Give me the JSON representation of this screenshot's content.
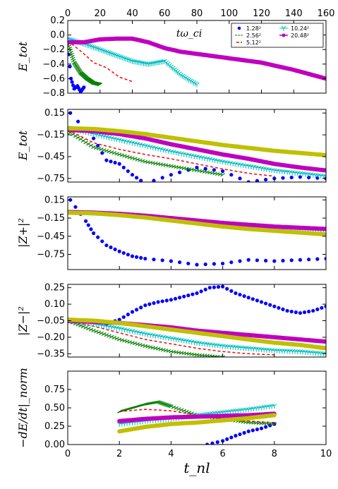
{
  "chart_data": [
    {
      "type": "line",
      "ylabel": "E_tot",
      "xlim": [
        0,
        160
      ],
      "ylim": [
        -0.8,
        0.2
      ],
      "yticks": [
        0.2,
        0.0,
        -0.2,
        -0.4,
        -0.6,
        -0.8
      ],
      "ytick_labels": [
        "0.2",
        "0.0",
        "−0.2",
        "−0.4",
        "−0.6",
        "−0.8"
      ],
      "xticks": [
        0,
        20,
        40,
        60,
        80,
        100,
        120,
        140,
        160
      ],
      "xtick_labels": [
        "0",
        "20",
        "40",
        "60",
        "80",
        "100",
        "120",
        "140",
        "160"
      ],
      "x_axis_label": "tω_ci",
      "legend": {
        "placement": "top-right",
        "entries": [
          {
            "label": "1.28²",
            "color": "#0000ff",
            "marker": "circle"
          },
          {
            "label": "2.56²",
            "color": "#008000",
            "marker": "tick"
          },
          {
            "label": "5.12²",
            "color": "#ff0000",
            "marker": "dash"
          },
          {
            "label": "10.24²",
            "color": "#00bfbf",
            "marker": "tri"
          },
          {
            "label": "20.48²",
            "color": "#bf00bf",
            "marker": "circle-line"
          }
        ]
      },
      "series": [
        {
          "color": "#0000ff",
          "style": "dots",
          "x": [
            0,
            2,
            4,
            6,
            8,
            10
          ],
          "y": [
            -0.1,
            -0.6,
            -0.74,
            -0.7,
            -0.78,
            -0.72
          ]
        },
        {
          "color": "#008000",
          "style": "ticks",
          "x": [
            0,
            4,
            8,
            12,
            16,
            20
          ],
          "y": [
            -0.1,
            -0.38,
            -0.52,
            -0.6,
            -0.66,
            -0.68
          ]
        },
        {
          "color": "#ff0000",
          "style": "dashes",
          "x": [
            0,
            8,
            16,
            24,
            32,
            40
          ],
          "y": [
            -0.08,
            -0.22,
            -0.38,
            -0.45,
            -0.58,
            -0.64
          ]
        },
        {
          "color": "#00bfbf",
          "style": "tris",
          "x": [
            0,
            10,
            20,
            30,
            40,
            50,
            60,
            70,
            80
          ],
          "y": [
            -0.05,
            -0.12,
            -0.2,
            -0.28,
            -0.36,
            -0.4,
            -0.36,
            -0.55,
            -0.68
          ]
        },
        {
          "color": "#bf00bf",
          "style": "thick",
          "x": [
            0,
            10,
            20,
            30,
            40,
            50,
            60,
            70,
            80,
            100,
            120,
            140,
            160
          ],
          "y": [
            -0.1,
            -0.1,
            -0.06,
            -0.05,
            -0.05,
            -0.1,
            -0.18,
            -0.23,
            -0.26,
            -0.32,
            -0.38,
            -0.48,
            -0.6
          ]
        }
      ]
    },
    {
      "type": "line",
      "ylabel": "E_tot",
      "xlim": [
        0,
        10
      ],
      "ylim": [
        -0.8,
        0.2
      ],
      "yticks": [
        0.15,
        -0.15,
        -0.45,
        -0.75
      ],
      "ytick_labels": [
        "0.15",
        "−0.15",
        "−0.45",
        "−0.75"
      ],
      "series": [
        {
          "color": "#0000ff",
          "style": "dots",
          "x": [
            0.1,
            1,
            1.5,
            2,
            2.5,
            3,
            4,
            5,
            6,
            7,
            8,
            9,
            10
          ],
          "y": [
            0.15,
            -0.2,
            -0.5,
            -0.55,
            -0.7,
            -0.82,
            -0.7,
            -0.6,
            -0.65,
            -0.8,
            -0.75,
            -0.73,
            -0.75
          ]
        },
        {
          "color": "#008000",
          "style": "ticks",
          "x": [
            0,
            1,
            2,
            3,
            4,
            5,
            6
          ],
          "y": [
            -0.1,
            -0.32,
            -0.42,
            -0.52,
            -0.58,
            -0.64,
            -0.7
          ]
        },
        {
          "color": "#ff0000",
          "style": "dashes",
          "x": [
            0,
            1,
            2,
            3,
            4,
            5,
            6,
            7,
            8
          ],
          "y": [
            -0.08,
            -0.26,
            -0.35,
            -0.42,
            -0.48,
            -0.55,
            -0.62,
            -0.68,
            -0.72
          ]
        },
        {
          "color": "#00bfbf",
          "style": "tris",
          "x": [
            0,
            1,
            2,
            3,
            4,
            5,
            6,
            7,
            8,
            9,
            10
          ],
          "y": [
            -0.05,
            -0.14,
            -0.22,
            -0.3,
            -0.38,
            -0.45,
            -0.52,
            -0.58,
            -0.64,
            -0.68,
            -0.72
          ]
        },
        {
          "color": "#bf00bf",
          "style": "thick",
          "x": [
            0,
            1,
            2,
            3,
            4,
            5,
            6,
            7,
            8,
            9,
            10
          ],
          "y": [
            -0.08,
            -0.1,
            -0.14,
            -0.2,
            -0.28,
            -0.35,
            -0.42,
            -0.48,
            -0.55,
            -0.6,
            -0.64
          ]
        },
        {
          "color": "#c0c000",
          "style": "thick",
          "x": [
            0,
            1,
            2,
            3,
            4,
            5,
            6,
            7,
            8,
            9,
            10
          ],
          "y": [
            -0.06,
            -0.07,
            -0.1,
            -0.14,
            -0.19,
            -0.24,
            -0.29,
            -0.33,
            -0.37,
            -0.4,
            -0.43
          ]
        }
      ]
    },
    {
      "type": "line",
      "ylabel": "|Z+|²",
      "xlim": [
        0,
        10
      ],
      "ylim": [
        -1.0,
        0.2
      ],
      "yticks": [
        0.15,
        -0.15,
        -0.45,
        -0.75
      ],
      "ytick_labels": [
        "0.15",
        "−0.15",
        "−0.45",
        "−0.75"
      ],
      "series": [
        {
          "color": "#0000ff",
          "style": "dots",
          "x": [
            0.1,
            0.7,
            1,
            1.5,
            2,
            2.5,
            3,
            4,
            5,
            6,
            7,
            8,
            9,
            10
          ],
          "y": [
            0.15,
            -0.2,
            -0.4,
            -0.6,
            -0.7,
            -0.78,
            -0.82,
            -0.86,
            -0.92,
            -0.9,
            -0.84,
            -0.86,
            -0.84,
            -0.82
          ]
        },
        {
          "color": "#008000",
          "style": "ticks",
          "x": [
            0,
            1,
            2,
            3,
            4,
            5,
            6
          ],
          "y": [
            -0.05,
            -0.08,
            -0.1,
            -0.14,
            -0.18,
            -0.22,
            -0.28
          ]
        },
        {
          "color": "#ff0000",
          "style": "dashes",
          "x": [
            0,
            1,
            2,
            3,
            4,
            5,
            6,
            7,
            8
          ],
          "y": [
            -0.05,
            -0.06,
            -0.08,
            -0.12,
            -0.17,
            -0.2,
            -0.24,
            -0.28,
            -0.32
          ]
        },
        {
          "color": "#00bfbf",
          "style": "tris",
          "x": [
            0,
            1,
            2,
            3,
            4,
            5,
            6,
            7,
            8,
            9,
            10
          ],
          "y": [
            -0.05,
            -0.06,
            -0.09,
            -0.13,
            -0.18,
            -0.22,
            -0.26,
            -0.29,
            -0.32,
            -0.34,
            -0.36
          ]
        },
        {
          "color": "#bf00bf",
          "style": "thick",
          "x": [
            0,
            1,
            2,
            3,
            4,
            5,
            6,
            7,
            8,
            9,
            10
          ],
          "y": [
            -0.05,
            -0.06,
            -0.08,
            -0.11,
            -0.15,
            -0.19,
            -0.23,
            -0.26,
            -0.29,
            -0.31,
            -0.33
          ]
        },
        {
          "color": "#c0c000",
          "style": "thick",
          "x": [
            0,
            1,
            2,
            3,
            4,
            5,
            6,
            7,
            8,
            9,
            10
          ],
          "y": [
            -0.06,
            -0.07,
            -0.1,
            -0.14,
            -0.19,
            -0.24,
            -0.29,
            -0.33,
            -0.36,
            -0.39,
            -0.42
          ]
        }
      ]
    },
    {
      "type": "line",
      "ylabel": "|Z−|²",
      "xlim": [
        0,
        10
      ],
      "ylim": [
        -0.38,
        0.28
      ],
      "yticks": [
        0.25,
        0.1,
        -0.05,
        -0.2,
        -0.35
      ],
      "ytick_labels": [
        "0.25",
        "0.10",
        "−0.05",
        "−0.20",
        "−0.35"
      ],
      "series": [
        {
          "color": "#0000ff",
          "style": "dots",
          "x": [
            0,
            1,
            1.5,
            2,
            2.5,
            3,
            3.5,
            4,
            4.5,
            5,
            5.5,
            6,
            6.5,
            7,
            7.5,
            8,
            8.5,
            9,
            9.5,
            10
          ],
          "y": [
            -0.05,
            -0.05,
            -0.08,
            -0.04,
            0.03,
            0.09,
            0.12,
            0.14,
            0.17,
            0.2,
            0.25,
            0.26,
            0.2,
            0.16,
            0.12,
            0.08,
            0.04,
            0.02,
            0.04,
            0.08
          ]
        },
        {
          "color": "#008000",
          "style": "ticks",
          "x": [
            0,
            1,
            2,
            3,
            4,
            5,
            6
          ],
          "y": [
            -0.05,
            -0.14,
            -0.22,
            -0.28,
            -0.33,
            -0.36,
            -0.38
          ]
        },
        {
          "color": "#ff0000",
          "style": "dashes",
          "x": [
            0,
            1,
            2,
            3,
            4,
            5,
            6,
            7,
            8
          ],
          "y": [
            -0.05,
            -0.1,
            -0.16,
            -0.22,
            -0.26,
            -0.3,
            -0.33,
            -0.35,
            -0.36
          ]
        },
        {
          "color": "#00bfbf",
          "style": "tris",
          "x": [
            0,
            1,
            2,
            3,
            4,
            5,
            6,
            7,
            8,
            9,
            10
          ],
          "y": [
            -0.05,
            -0.08,
            -0.12,
            -0.17,
            -0.21,
            -0.25,
            -0.28,
            -0.3,
            -0.32,
            -0.33,
            -0.35
          ]
        },
        {
          "color": "#bf00bf",
          "style": "thick",
          "x": [
            0,
            1,
            2,
            3,
            4,
            5,
            6,
            7,
            8,
            9,
            10
          ],
          "y": [
            -0.05,
            -0.06,
            -0.07,
            -0.09,
            -0.11,
            -0.14,
            -0.16,
            -0.18,
            -0.2,
            -0.22,
            -0.24
          ]
        },
        {
          "color": "#c0c000",
          "style": "thick",
          "x": [
            0,
            1,
            2,
            3,
            4,
            5,
            6,
            7,
            8,
            9,
            10
          ],
          "y": [
            -0.04,
            -0.05,
            -0.07,
            -0.1,
            -0.13,
            -0.16,
            -0.19,
            -0.22,
            -0.25,
            -0.27,
            -0.3
          ]
        }
      ]
    },
    {
      "type": "line",
      "ylabel": "−dE/dt|_norm",
      "xlim": [
        0,
        10
      ],
      "ylim": [
        0,
        1.0
      ],
      "yticks": [
        0.0,
        0.25,
        0.5,
        0.75
      ],
      "ytick_labels": [
        "0.00",
        "0.25",
        "0.50",
        "0.75"
      ],
      "xticks": [
        0,
        2,
        4,
        6,
        8,
        10
      ],
      "xtick_labels": [
        "0",
        "2",
        "4",
        "6",
        "8",
        "10"
      ],
      "xlabel": "t_nl",
      "series": [
        {
          "color": "#0000ff",
          "style": "dots",
          "x": [
            5.4,
            6,
            6.5,
            7,
            7.5,
            8
          ],
          "y": [
            0.0,
            0.05,
            0.12,
            0.18,
            0.22,
            0.28
          ]
        },
        {
          "color": "#008000",
          "style": "ticks",
          "x": [
            2,
            2.5,
            3,
            3.5,
            4,
            5,
            6,
            7,
            8
          ],
          "y": [
            0.45,
            0.5,
            0.55,
            0.58,
            0.52,
            0.4,
            0.35,
            0.3,
            0.28
          ]
        },
        {
          "color": "#ff0000",
          "style": "dashes",
          "x": [
            2,
            3,
            4,
            5,
            6,
            7,
            8
          ],
          "y": [
            0.45,
            0.48,
            0.46,
            0.4,
            0.35,
            0.32,
            0.3
          ]
        },
        {
          "color": "#00bfbf",
          "style": "tris",
          "x": [
            2,
            3,
            4,
            5,
            6,
            7,
            8
          ],
          "y": [
            0.28,
            0.32,
            0.35,
            0.4,
            0.44,
            0.48,
            0.53
          ]
        },
        {
          "color": "#bf00bf",
          "style": "thick",
          "x": [
            2,
            3,
            4,
            5,
            6,
            7,
            8
          ],
          "y": [
            0.32,
            0.35,
            0.37,
            0.38,
            0.39,
            0.4,
            0.42
          ]
        },
        {
          "color": "#c0c000",
          "style": "thick",
          "x": [
            2,
            3,
            4,
            5,
            6,
            7,
            8
          ],
          "y": [
            0.18,
            0.24,
            0.28,
            0.3,
            0.33,
            0.36,
            0.4
          ]
        }
      ]
    }
  ]
}
